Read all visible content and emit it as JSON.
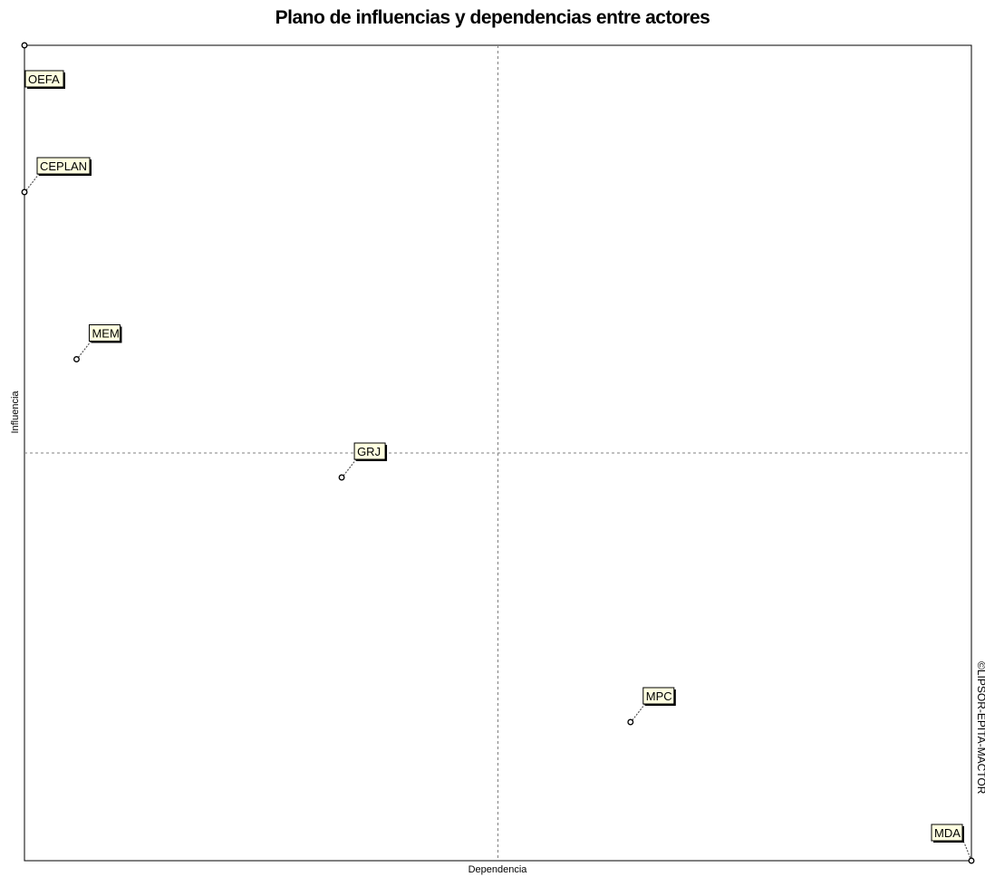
{
  "chart_data": {
    "type": "scatter",
    "title": "Plano de influencias y dependencias entre actores",
    "xlabel": "Dependencia",
    "ylabel": "Influencia",
    "xlim": [
      0,
      1
    ],
    "ylim": [
      0,
      1
    ],
    "grid": false,
    "reference_lines": {
      "x": 0.5,
      "y": 0.5
    },
    "points": [
      {
        "label": "OEFA",
        "x": 0.0,
        "y": 1.0
      },
      {
        "label": "CEPLAN",
        "x": 0.0,
        "y": 0.82
      },
      {
        "label": "MEM",
        "x": 0.055,
        "y": 0.615
      },
      {
        "label": "GRJ",
        "x": 0.335,
        "y": 0.47
      },
      {
        "label": "MPC",
        "x": 0.64,
        "y": 0.17
      },
      {
        "label": "MDA",
        "x": 1.0,
        "y": 0.0
      }
    ],
    "watermark": "©LIPSOR-EPITA-MACTOR",
    "colors": {
      "label_fill": "#ffffe0",
      "marker": "#000000",
      "quadrant_line": "#808080"
    }
  }
}
